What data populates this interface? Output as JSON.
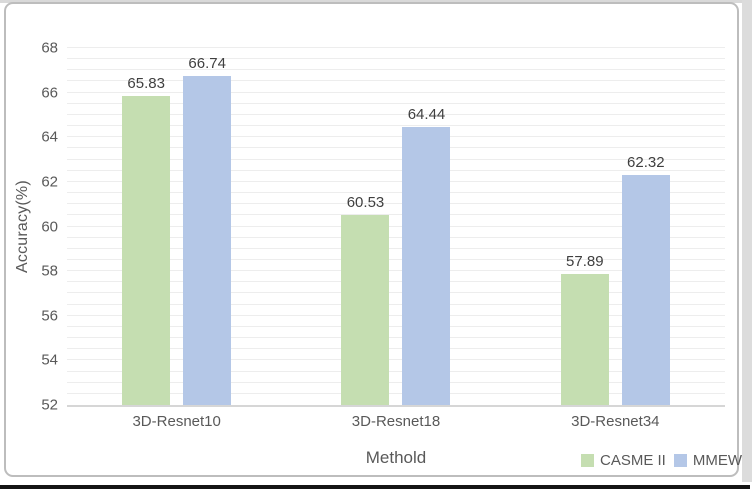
{
  "chart_data": {
    "type": "bar",
    "categories": [
      "3D-Resnet10",
      "3D-Resnet18",
      "3D-Resnet34"
    ],
    "series": [
      {
        "name": "CASME II",
        "color": "#c5deb1",
        "values": [
          65.83,
          60.53,
          57.89
        ]
      },
      {
        "name": "MMEW",
        "color": "#b4c7e7",
        "values": [
          66.74,
          64.44,
          62.32
        ]
      }
    ],
    "title": "",
    "xlabel": "Methold",
    "ylabel": "Accuracy(%)",
    "ylim": [
      52,
      68
    ],
    "ytick_step": 2,
    "grid_step": 0.5,
    "grid": true,
    "legend_position": "bottom-right",
    "data_labels": [
      "65.83",
      "66.74",
      "60.53",
      "64.44",
      "57.89",
      "62.32"
    ],
    "ytick_labels": [
      "52",
      "54",
      "56",
      "58",
      "60",
      "62",
      "64",
      "66",
      "68"
    ]
  },
  "colors": {
    "grid": "#ededed",
    "axis_line": "#d6d6d6",
    "tick_text": "#595959",
    "value_text": "#3f3f3f",
    "card_border": "#bdbdbd",
    "page_strip": "#d9d9d9",
    "bottom_rule": "#141414"
  }
}
